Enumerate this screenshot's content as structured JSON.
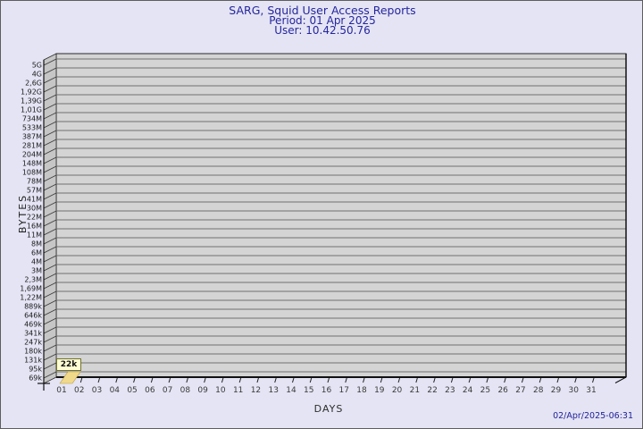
{
  "window": {
    "background": "#e4e4f4",
    "border_color": "#5e5e5e"
  },
  "header": {
    "title": "SARG, Squid User Access Reports",
    "period": "Period: 01 Apr 2025",
    "user": "User: 10.42.50.76"
  },
  "footer": {
    "timestamp": "02/Apr/2025-06:31"
  },
  "chart_data": {
    "type": "bar",
    "style": "3d-bar-gdchart",
    "title": "SARG, Squid User Access Reports",
    "subtitle_lines": [
      "Period: 01 Apr 2025",
      "User: 10.42.50.76"
    ],
    "xlabel": "DAYS",
    "ylabel": "BYTES",
    "x_ticks": [
      "01",
      "02",
      "03",
      "04",
      "05",
      "06",
      "07",
      "08",
      "09",
      "10",
      "11",
      "12",
      "13",
      "14",
      "15",
      "16",
      "17",
      "18",
      "19",
      "20",
      "21",
      "22",
      "23",
      "24",
      "25",
      "26",
      "27",
      "28",
      "29",
      "30",
      "31"
    ],
    "y_ticks": [
      "5G",
      "4G",
      "2,6G",
      "1,92G",
      "1,39G",
      "1,01G",
      "734M",
      "533M",
      "387M",
      "281M",
      "204M",
      "148M",
      "108M",
      "78M",
      "57M",
      "41M",
      "30M",
      "22M",
      "16M",
      "11M",
      "8M",
      "6M",
      "4M",
      "3M",
      "2,3M",
      "1,69M",
      "1,22M",
      "889k",
      "646k",
      "469k",
      "341k",
      "247k",
      "180k",
      "131k",
      "95k",
      "69k"
    ],
    "y_axis_top": "5G",
    "y_axis_bottom": "69k",
    "grid": "horizontal-only",
    "legend": "none",
    "series": [
      {
        "name": "bytes-per-day",
        "points": [
          {
            "day": "01",
            "label": "22k"
          }
        ]
      }
    ],
    "annotations": [
      {
        "day": "01",
        "text": "22k"
      }
    ],
    "colors": {
      "plot_bg": "#d4d4d4",
      "grid_line": "#6f6f6f",
      "wall": "#c6c6c6",
      "wall_tick": "#3a3a3a",
      "axis": "#1a1a1a",
      "bar": "#f0d98a",
      "bar_edge": "#b99c3f",
      "annot_bg": "#ffffd4",
      "annot_border": "#72722e",
      "tick_text": "#1a1a1a",
      "day_text": "#3a3a3a",
      "title_text": "#26269e"
    }
  }
}
